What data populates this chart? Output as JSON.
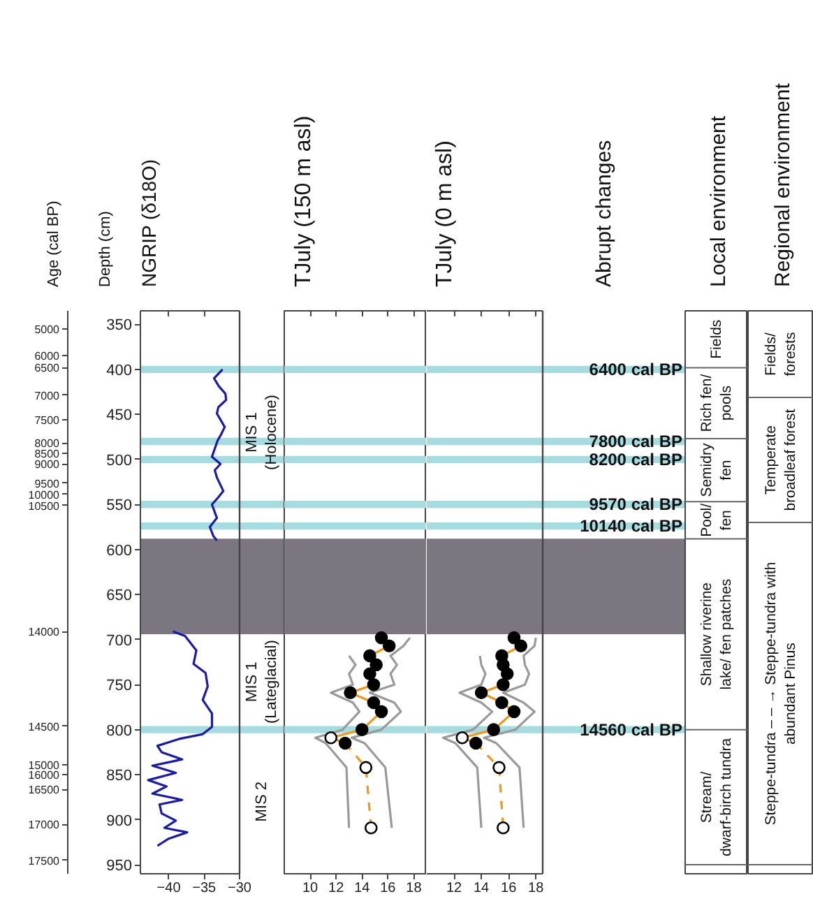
{
  "chart_data": [
    {
      "type": "other",
      "title": "Age (cal BP)",
      "annotations": [
        "5000",
        "6000",
        "6500",
        "7000",
        "7500",
        "8000",
        "8500",
        "9000",
        "9500",
        "10000",
        "10500",
        "14000",
        "14500",
        "15000",
        "16000",
        "16500",
        "17000",
        "17500"
      ]
    },
    {
      "type": "line",
      "title": "NGRIP (δ18O)",
      "ylabel": "Depth (cm)",
      "xlim": [
        -44,
        -30
      ],
      "xticks": [
        -40,
        -35,
        -30
      ],
      "ylim": [
        960,
        335
      ],
      "yticks": [
        350,
        400,
        450,
        500,
        550,
        600,
        650,
        700,
        750,
        800,
        850,
        900,
        950
      ],
      "grid": false,
      "annotations": [
        "MIS 1\n(Holocene)",
        "MIS 1\n(Lateglacial)",
        "MIS 2"
      ],
      "bands": [
        {
          "axis": "y",
          "from": 396,
          "to": 404,
          "color": "#a6dce0"
        },
        {
          "axis": "y",
          "from": 476,
          "to": 484,
          "color": "#a6dce0"
        },
        {
          "axis": "y",
          "from": 496,
          "to": 504,
          "color": "#a6dce0"
        },
        {
          "axis": "y",
          "from": 546,
          "to": 554,
          "color": "#a6dce0"
        },
        {
          "axis": "y",
          "from": 570,
          "to": 578,
          "color": "#a6dce0"
        },
        {
          "axis": "y",
          "from": 796,
          "to": 804,
          "color": "#a6dce0"
        },
        {
          "axis": "y",
          "from": 588,
          "to": 694,
          "color": "#7b7680"
        }
      ],
      "series": [
        {
          "color": "#1c1ca0",
          "x": [
            -32.4,
            -33.6,
            -32.9,
            -32.0,
            -31.9,
            -33.0,
            -33.2,
            -32.1,
            -32.6,
            -33.1,
            -33.9,
            -32.7,
            -33.5,
            -33.2,
            -32.3,
            -33.0,
            -33.9,
            -33.2,
            -34.2,
            -33.7,
            -33.2,
            null,
            -39.4,
            -37.7,
            -36.1,
            -36.5,
            -34.8,
            -34.5,
            -35.2,
            -33.9,
            -33.9,
            -35.2,
            -38.4,
            -41.6,
            -41.0,
            -38.1,
            -42.3,
            -39.0,
            -42.9,
            -40.3,
            -42.3,
            -38.1,
            -41.3,
            -41.0,
            -39.0,
            -40.6,
            -37.4,
            -40.0,
            -41.6
          ],
          "values": [
            400,
            410,
            419,
            427,
            434,
            442,
            449,
            464,
            472,
            479,
            497,
            505,
            512,
            520,
            535,
            542,
            550,
            565,
            575,
            585,
            590,
            null,
            691,
            696,
            712,
            727,
            737,
            752,
            767,
            782,
            797,
            805,
            810,
            818,
            825,
            833,
            840,
            848,
            856,
            863,
            871,
            878,
            883,
            893,
            901,
            909,
            914,
            921,
            929
          ]
        }
      ]
    },
    {
      "type": "line",
      "title": "TJuly (150 m asl)",
      "xlim": [
        8,
        19
      ],
      "xticks": [
        10,
        12,
        14,
        16,
        18
      ],
      "ylim": [
        960,
        335
      ],
      "tick_labels": "x",
      "grid": false,
      "bands": [
        {
          "axis": "y",
          "from": 396,
          "to": 404,
          "color": "#a6dce0"
        },
        {
          "axis": "y",
          "from": 476,
          "to": 484,
          "color": "#a6dce0"
        },
        {
          "axis": "y",
          "from": 496,
          "to": 504,
          "color": "#a6dce0"
        },
        {
          "axis": "y",
          "from": 546,
          "to": 554,
          "color": "#a6dce0"
        },
        {
          "axis": "y",
          "from": 570,
          "to": 578,
          "color": "#a6dce0"
        },
        {
          "axis": "y",
          "from": 796,
          "to": 804,
          "color": "#a6dce0"
        },
        {
          "axis": "y",
          "from": 588,
          "to": 694,
          "color": "#7b7680"
        }
      ],
      "series": [
        {
          "color": "#999999",
          "x": [
            13.0,
            13.5,
            13.0,
            13.3,
            11.6,
            13.3,
            13.8,
            12.5,
            10.4,
            11.2,
            12.8,
            13.0
          ],
          "values": [
            718,
            728,
            738,
            750,
            759,
            770,
            780,
            800,
            809,
            815,
            842,
            909
          ]
        },
        {
          "color": "#999999",
          "x": [
            17.7,
            17.2,
            16.2,
            16.7,
            16.2,
            16.5,
            14.6,
            16.5,
            17.0,
            15.5,
            13.2,
            14.2,
            15.8,
            16.3
          ],
          "values": [
            698,
            707,
            718,
            728,
            738,
            750,
            759,
            770,
            780,
            800,
            809,
            815,
            842,
            909
          ]
        },
        {
          "color": "#f0961e",
          "line_style": "solid",
          "x": [
            15.5,
            16.1,
            14.6,
            15.1,
            14.6,
            14.9,
            13.1,
            14.9,
            15.5,
            14.0,
            11.6,
            12.7
          ],
          "values": [
            698,
            707,
            718,
            728,
            738,
            750,
            759,
            770,
            780,
            800,
            809,
            815
          ]
        },
        {
          "color": "#f0961e",
          "line_style": "dashed",
          "x": [
            12.7,
            14.3,
            14.7
          ],
          "values": [
            815,
            842,
            909
          ]
        },
        {
          "type": "scatter",
          "marker": "circle",
          "color": "#000000",
          "x": [
            15.5,
            16.1,
            14.6,
            15.1,
            14.6,
            14.9,
            13.1,
            14.9,
            15.5,
            14.0,
            12.7
          ],
          "values": [
            698,
            707,
            718,
            728,
            738,
            750,
            759,
            770,
            780,
            800,
            815
          ]
        },
        {
          "type": "scatter",
          "marker": "circle",
          "color": "#ffffff",
          "x": [
            11.6,
            14.3,
            14.7
          ],
          "values": [
            809,
            842,
            909
          ]
        }
      ]
    },
    {
      "type": "line",
      "title": "TJuly (0 m asl)",
      "xlim": [
        10,
        18.5
      ],
      "xticks": [
        12,
        14,
        16,
        18
      ],
      "ylim": [
        960,
        335
      ],
      "tick_labels": "x",
      "grid": false,
      "annotations": [
        "Abrupt changes",
        {
          "text": "6400 cal BP",
          "y": 400
        },
        {
          "text": "7800 cal BP",
          "y": 480
        },
        {
          "text": "8200 cal BP",
          "y": 500
        },
        {
          "text": "9570 cal BP",
          "y": 550
        },
        {
          "text": "10140 cal BP",
          "y": 574
        },
        {
          "text": "14560 cal BP",
          "y": 800
        }
      ],
      "bands": [
        {
          "axis": "y",
          "from": 396,
          "to": 404,
          "color": "#a6dce0"
        },
        {
          "axis": "y",
          "from": 476,
          "to": 484,
          "color": "#a6dce0"
        },
        {
          "axis": "y",
          "from": 496,
          "to": 504,
          "color": "#a6dce0"
        },
        {
          "axis": "y",
          "from": 546,
          "to": 554,
          "color": "#a6dce0"
        },
        {
          "axis": "y",
          "from": 570,
          "to": 578,
          "color": "#a6dce0"
        },
        {
          "axis": "y",
          "from": 796,
          "to": 804,
          "color": "#a6dce0"
        },
        {
          "axis": "y",
          "from": 588,
          "to": 694,
          "color": "#7b7680"
        }
      ],
      "series": [
        {
          "color": "#999999",
          "x": [
            13.9,
            14.0,
            14.3,
            14.0,
            12.4,
            14.0,
            14.8,
            13.4,
            11.2,
            12.1,
            13.7,
            14.0
          ],
          "values": [
            718,
            728,
            738,
            750,
            759,
            770,
            780,
            800,
            809,
            815,
            842,
            909
          ]
        },
        {
          "color": "#999999",
          "x": [
            18.0,
            17.9,
            17.1,
            17.2,
            17.5,
            17.2,
            15.6,
            17.1,
            17.9,
            16.5,
            14.2,
            15.1,
            16.8,
            17.1
          ],
          "values": [
            698,
            707,
            718,
            728,
            738,
            750,
            759,
            770,
            780,
            800,
            809,
            815,
            842,
            909
          ]
        },
        {
          "color": "#f0961e",
          "line_style": "solid",
          "x": [
            16.4,
            16.9,
            15.5,
            15.6,
            15.9,
            15.6,
            14.0,
            15.5,
            16.4,
            14.9,
            12.6,
            13.6
          ],
          "values": [
            698,
            707,
            718,
            728,
            738,
            750,
            759,
            770,
            780,
            800,
            809,
            815
          ]
        },
        {
          "color": "#f0961e",
          "line_style": "dashed",
          "x": [
            13.6,
            15.3,
            15.6
          ],
          "values": [
            815,
            842,
            909
          ]
        },
        {
          "type": "scatter",
          "marker": "circle",
          "color": "#000000",
          "x": [
            16.4,
            16.9,
            15.5,
            15.6,
            15.9,
            15.6,
            14.0,
            15.5,
            16.4,
            14.9,
            13.6
          ],
          "values": [
            698,
            707,
            718,
            728,
            738,
            750,
            759,
            770,
            780,
            800,
            815
          ]
        },
        {
          "type": "scatter",
          "marker": "circle",
          "color": "#ffffff",
          "x": [
            12.6,
            15.3,
            15.6
          ],
          "values": [
            809,
            842,
            909
          ]
        }
      ]
    },
    {
      "type": "other",
      "title": "Local environment",
      "annotations": [
        "Fields",
        "Rich fen/\npools",
        "Semidry\nfen",
        "Pool/\nfen",
        "Shallow riverine\nlake/ fen patches",
        "Stream/\ndwarf-birch tundra"
      ]
    },
    {
      "type": "other",
      "title": "Regional environment",
      "annotations": [
        "Fields/\nforests",
        "Temperate\nbroadleaf forest",
        "Steppe-tundra – – → Steppe-tundra with\nabundant Pinus"
      ]
    }
  ]
}
